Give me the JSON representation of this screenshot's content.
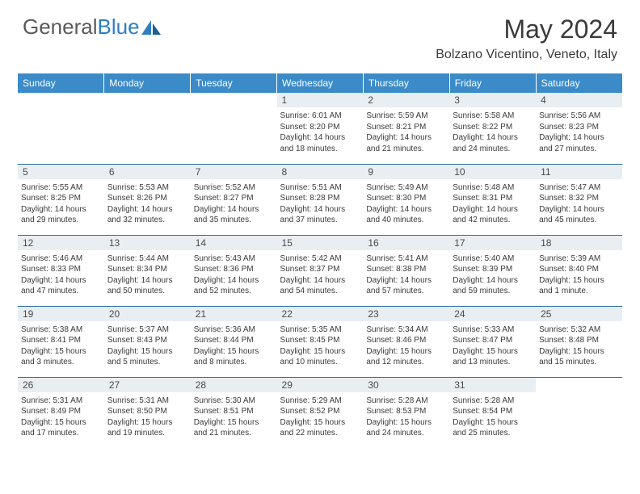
{
  "brand": {
    "part1": "General",
    "part2": "Blue"
  },
  "title": "May 2024",
  "location": "Bolzano Vicentino, Veneto, Italy",
  "colors": {
    "header_bg": "#3b8bc9",
    "header_text": "#ffffff",
    "daynum_bg": "#e9eef2",
    "row_divider": "#2a6ea8",
    "text": "#3a3a3a",
    "logo_gray": "#5a5a5a",
    "logo_blue": "#2f7fc0"
  },
  "weekdays": [
    "Sunday",
    "Monday",
    "Tuesday",
    "Wednesday",
    "Thursday",
    "Friday",
    "Saturday"
  ],
  "weeks": [
    [
      null,
      null,
      null,
      {
        "n": "1",
        "sr": "6:01 AM",
        "ss": "8:20 PM",
        "dl": "14 hours and 18 minutes."
      },
      {
        "n": "2",
        "sr": "5:59 AM",
        "ss": "8:21 PM",
        "dl": "14 hours and 21 minutes."
      },
      {
        "n": "3",
        "sr": "5:58 AM",
        "ss": "8:22 PM",
        "dl": "14 hours and 24 minutes."
      },
      {
        "n": "4",
        "sr": "5:56 AM",
        "ss": "8:23 PM",
        "dl": "14 hours and 27 minutes."
      }
    ],
    [
      {
        "n": "5",
        "sr": "5:55 AM",
        "ss": "8:25 PM",
        "dl": "14 hours and 29 minutes."
      },
      {
        "n": "6",
        "sr": "5:53 AM",
        "ss": "8:26 PM",
        "dl": "14 hours and 32 minutes."
      },
      {
        "n": "7",
        "sr": "5:52 AM",
        "ss": "8:27 PM",
        "dl": "14 hours and 35 minutes."
      },
      {
        "n": "8",
        "sr": "5:51 AM",
        "ss": "8:28 PM",
        "dl": "14 hours and 37 minutes."
      },
      {
        "n": "9",
        "sr": "5:49 AM",
        "ss": "8:30 PM",
        "dl": "14 hours and 40 minutes."
      },
      {
        "n": "10",
        "sr": "5:48 AM",
        "ss": "8:31 PM",
        "dl": "14 hours and 42 minutes."
      },
      {
        "n": "11",
        "sr": "5:47 AM",
        "ss": "8:32 PM",
        "dl": "14 hours and 45 minutes."
      }
    ],
    [
      {
        "n": "12",
        "sr": "5:46 AM",
        "ss": "8:33 PM",
        "dl": "14 hours and 47 minutes."
      },
      {
        "n": "13",
        "sr": "5:44 AM",
        "ss": "8:34 PM",
        "dl": "14 hours and 50 minutes."
      },
      {
        "n": "14",
        "sr": "5:43 AM",
        "ss": "8:36 PM",
        "dl": "14 hours and 52 minutes."
      },
      {
        "n": "15",
        "sr": "5:42 AM",
        "ss": "8:37 PM",
        "dl": "14 hours and 54 minutes."
      },
      {
        "n": "16",
        "sr": "5:41 AM",
        "ss": "8:38 PM",
        "dl": "14 hours and 57 minutes."
      },
      {
        "n": "17",
        "sr": "5:40 AM",
        "ss": "8:39 PM",
        "dl": "14 hours and 59 minutes."
      },
      {
        "n": "18",
        "sr": "5:39 AM",
        "ss": "8:40 PM",
        "dl": "15 hours and 1 minute."
      }
    ],
    [
      {
        "n": "19",
        "sr": "5:38 AM",
        "ss": "8:41 PM",
        "dl": "15 hours and 3 minutes."
      },
      {
        "n": "20",
        "sr": "5:37 AM",
        "ss": "8:43 PM",
        "dl": "15 hours and 5 minutes."
      },
      {
        "n": "21",
        "sr": "5:36 AM",
        "ss": "8:44 PM",
        "dl": "15 hours and 8 minutes."
      },
      {
        "n": "22",
        "sr": "5:35 AM",
        "ss": "8:45 PM",
        "dl": "15 hours and 10 minutes."
      },
      {
        "n": "23",
        "sr": "5:34 AM",
        "ss": "8:46 PM",
        "dl": "15 hours and 12 minutes."
      },
      {
        "n": "24",
        "sr": "5:33 AM",
        "ss": "8:47 PM",
        "dl": "15 hours and 13 minutes."
      },
      {
        "n": "25",
        "sr": "5:32 AM",
        "ss": "8:48 PM",
        "dl": "15 hours and 15 minutes."
      }
    ],
    [
      {
        "n": "26",
        "sr": "5:31 AM",
        "ss": "8:49 PM",
        "dl": "15 hours and 17 minutes."
      },
      {
        "n": "27",
        "sr": "5:31 AM",
        "ss": "8:50 PM",
        "dl": "15 hours and 19 minutes."
      },
      {
        "n": "28",
        "sr": "5:30 AM",
        "ss": "8:51 PM",
        "dl": "15 hours and 21 minutes."
      },
      {
        "n": "29",
        "sr": "5:29 AM",
        "ss": "8:52 PM",
        "dl": "15 hours and 22 minutes."
      },
      {
        "n": "30",
        "sr": "5:28 AM",
        "ss": "8:53 PM",
        "dl": "15 hours and 24 minutes."
      },
      {
        "n": "31",
        "sr": "5:28 AM",
        "ss": "8:54 PM",
        "dl": "15 hours and 25 minutes."
      },
      null
    ]
  ],
  "labels": {
    "sunrise": "Sunrise:",
    "sunset": "Sunset:",
    "daylight": "Daylight:"
  }
}
